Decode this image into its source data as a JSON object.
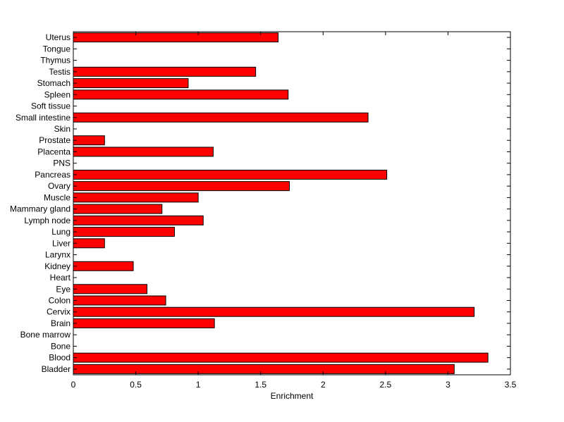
{
  "chart_data": {
    "type": "bar",
    "orientation": "horizontal",
    "title": "",
    "xlabel": "Enrichment",
    "ylabel": "",
    "xlim": [
      0,
      3.5
    ],
    "xticks": [
      "0",
      "0.5",
      "1",
      "1.5",
      "2",
      "2.5",
      "3",
      "3.5"
    ],
    "grid": false,
    "legend": "none",
    "bar_color": "#ff0000",
    "bar_edge_color": "#000000",
    "categories": [
      "Bladder",
      "Blood",
      "Bone",
      "Bone marrow",
      "Brain",
      "Cervix",
      "Colon",
      "Eye",
      "Heart",
      "Kidney",
      "Larynx",
      "Liver",
      "Lung",
      "Lymph node",
      "Mammary gland",
      "Muscle",
      "Ovary",
      "Pancreas",
      "PNS",
      "Placenta",
      "Prostate",
      "Skin",
      "Small intestine",
      "Soft tissue",
      "Spleen",
      "Stomach",
      "Testis",
      "Thymus",
      "Tongue",
      "Uterus"
    ],
    "values": [
      3.05,
      3.32,
      0,
      0,
      1.13,
      3.21,
      0.74,
      0.59,
      0,
      0.48,
      0,
      0.25,
      0.81,
      1.04,
      0.71,
      1.0,
      1.73,
      2.51,
      0,
      1.12,
      0.25,
      0,
      2.36,
      0,
      1.72,
      0.92,
      1.46,
      0,
      0,
      1.64
    ]
  }
}
